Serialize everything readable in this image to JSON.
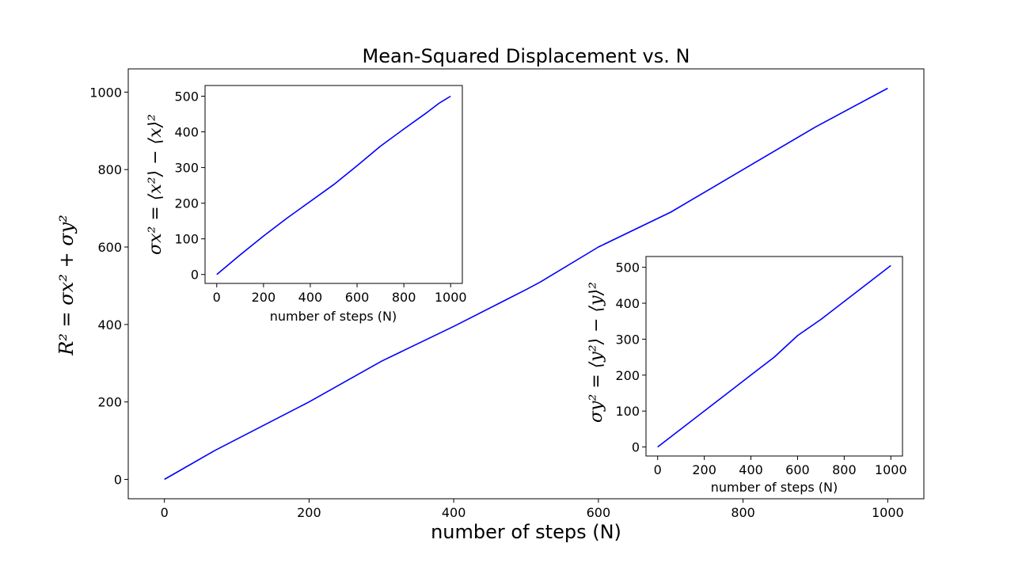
{
  "chart_data": [
    {
      "id": "main",
      "type": "line",
      "title": "Mean-Squared Displacement vs. N",
      "xlabel": "number of steps (N)",
      "ylabel": "R² = σx² + σy²",
      "xlim": [
        -50,
        1050
      ],
      "ylim": [
        -50,
        1060
      ],
      "xticks": [
        0,
        200,
        400,
        600,
        800,
        1000
      ],
      "yticks": [
        0,
        200,
        400,
        600,
        800,
        1000
      ],
      "grid": false,
      "color": "#0000ff",
      "series": [
        {
          "x": [
            0,
            70,
            200,
            300,
            400,
            500,
            520,
            600,
            700,
            800,
            900,
            1000
          ],
          "y": [
            0,
            75,
            200,
            305,
            395,
            490,
            510,
            600,
            690,
            800,
            910,
            1010
          ]
        }
      ]
    },
    {
      "id": "inset-x",
      "type": "line",
      "xlabel": "number of steps (N)",
      "ylabel": "σx² = ⟨x²⟩ − ⟨x⟩²",
      "xlim": [
        -50,
        1050
      ],
      "ylim": [
        -25,
        530
      ],
      "xticks": [
        0,
        200,
        400,
        600,
        800,
        1000
      ],
      "yticks": [
        0,
        100,
        200,
        300,
        400,
        500
      ],
      "grid": false,
      "color": "#0000ff",
      "series": [
        {
          "x": [
            0,
            100,
            200,
            300,
            400,
            500,
            600,
            700,
            800,
            900,
            950,
            1000
          ],
          "y": [
            0,
            55,
            108,
            158,
            205,
            252,
            305,
            360,
            408,
            455,
            480,
            500
          ]
        }
      ]
    },
    {
      "id": "inset-y",
      "type": "line",
      "xlabel": "number of steps (N)",
      "ylabel": "σy² = ⟨y²⟩ − ⟨y⟩²",
      "xlim": [
        -50,
        1050
      ],
      "ylim": [
        -25,
        530
      ],
      "xticks": [
        0,
        200,
        400,
        600,
        800,
        1000
      ],
      "yticks": [
        0,
        100,
        200,
        300,
        400,
        500
      ],
      "grid": false,
      "color": "#0000ff",
      "series": [
        {
          "x": [
            0,
            100,
            200,
            300,
            400,
            500,
            600,
            700,
            800,
            900,
            1000
          ],
          "y": [
            0,
            50,
            100,
            150,
            200,
            250,
            310,
            355,
            405,
            455,
            505
          ]
        }
      ]
    }
  ]
}
